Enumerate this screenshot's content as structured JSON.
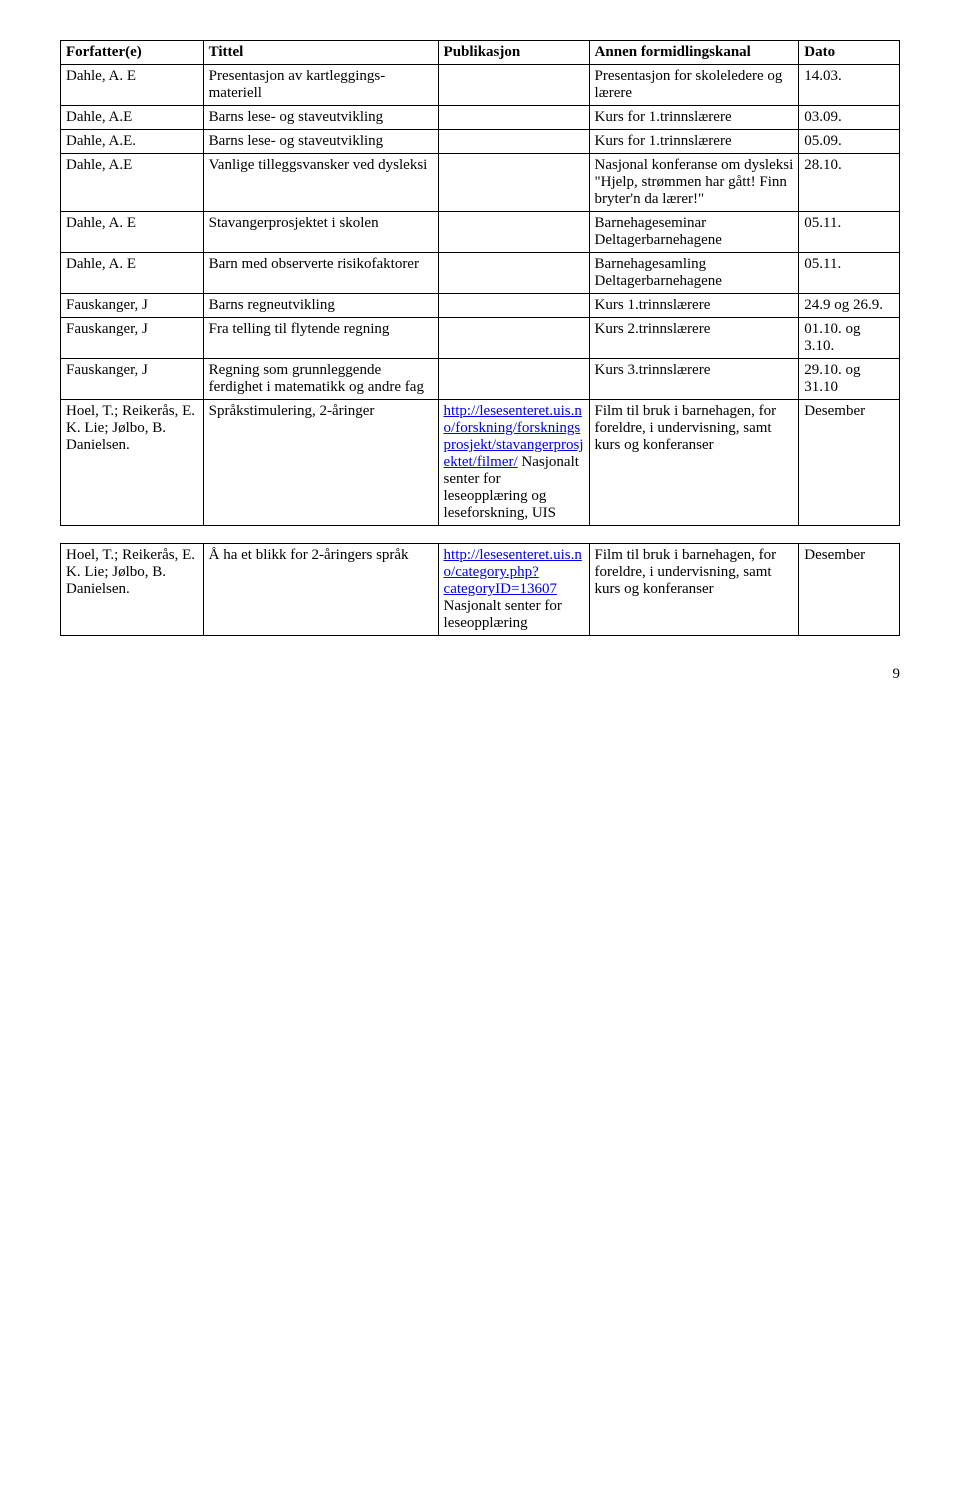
{
  "headers": {
    "author": "Forfatter(e)",
    "title": "Tittel",
    "publication": "Publikasjon",
    "channel": "Annen formidlingskanal",
    "date": "Dato"
  },
  "rows": [
    {
      "author": "Dahle, A. E",
      "title": "Presentasjon av kartleggings- materiell",
      "pub": "",
      "channel": "Presentasjon for skoleledere og lærere",
      "date": "14.03."
    },
    {
      "author": "Dahle, A.E",
      "title": "Barns lese- og staveutvikling",
      "pub": "",
      "channel": "Kurs for 1.trinnslærere",
      "date": "03.09."
    },
    {
      "author": "Dahle, A.E.",
      "title": "Barns lese- og staveutvikling",
      "pub": "",
      "channel": "Kurs for 1.trinnslærere",
      "date": "05.09."
    },
    {
      "author": "Dahle, A.E",
      "title": "Vanlige tilleggsvansker ved dysleksi",
      "pub": "",
      "channel": "Nasjonal konferanse om dysleksi \"Hjelp, strømmen har gått! Finn bryter'n da lærer!\"",
      "date": "28.10."
    },
    {
      "author": "Dahle, A. E",
      "title": "Stavangerprosjektet i skolen",
      "pub": "",
      "channel": "Barnehageseminar Deltagerbarnehagene",
      "date": "05.11."
    },
    {
      "author": "Dahle, A. E",
      "title": "Barn med observerte risikofaktorer",
      "pub": "",
      "channel": "Barnehagesamling Deltagerbarnehagene",
      "date": "05.11."
    },
    {
      "author": "Fauskanger, J",
      "title": "Barns regneutvikling",
      "pub": "",
      "channel": "Kurs 1.trinnslærere",
      "date": "24.9 og 26.9."
    },
    {
      "author": "Fauskanger, J",
      "title": "Fra telling til flytende regning",
      "pub": "",
      "channel": "Kurs 2.trinnslærere",
      "date": "01.10. og 3.10."
    },
    {
      "author": "Fauskanger, J",
      "title": "Regning som grunnleggende ferdighet i matematikk og andre fag",
      "pub": "",
      "channel": "Kurs 3.trinnslærere",
      "date": "29.10. og 31.10"
    },
    {
      "author": "Hoel, T.; Reikerås, E. K. Lie; Jølbo, B. Danielsen.",
      "title": "Språkstimulering, 2-åringer",
      "pub_link_text": "http://lesesenteret.uis.no/forskning/forskningsprosjekt/stavangerprosjektet/filmer/",
      "pub_link_href": "http://lesesenteret.uis.no/forskning/forskningsprosjekt/stavangerprosjektet/filmer/",
      "pub_after": " Nasjonalt senter for leseopplæring og leseforskning, UIS",
      "channel": "Film til bruk i barnehagen, for foreldre, i undervisning, samt kurs og konferanser",
      "date": "Desember"
    }
  ],
  "rows2": [
    {
      "author": "Hoel, T.; Reikerås, E. K. Lie; Jølbo, B. Danielsen.",
      "title": "Å ha et blikk for 2-åringers språk",
      "pub_link_text": "http://lesesenteret.uis.no/category.php?categoryID=13607",
      "pub_link_href": "http://lesesenteret.uis.no/category.php?categoryID=13607",
      "pub_after": " Nasjonalt senter for leseopplæring",
      "channel": "Film til bruk i barnehagen, for foreldre, i undervisning, samt kurs og konferanser",
      "date": "Desember"
    }
  ],
  "page_number": "9"
}
